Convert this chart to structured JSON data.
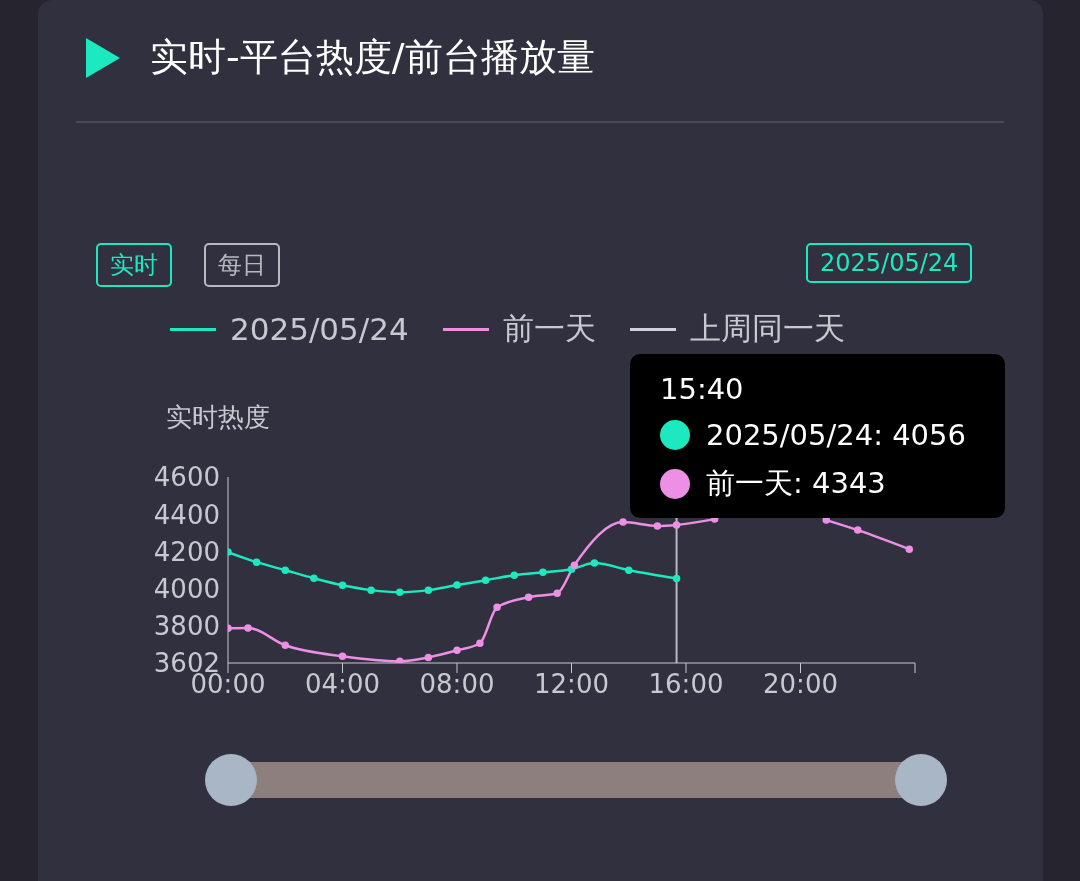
{
  "chart_data": {
    "type": "line",
    "title": "实时-平台热度/前台播放量",
    "ylabel": "实时热度",
    "legend": "top",
    "grid": false,
    "marker": "circle",
    "line_style": "solid",
    "xlim": [
      0,
      24
    ],
    "xticks": [
      {
        "value": 0,
        "label": "00:00"
      },
      {
        "value": 4,
        "label": "04:00"
      },
      {
        "value": 8,
        "label": "08:00"
      },
      {
        "value": 12,
        "label": "12:00"
      },
      {
        "value": 16,
        "label": "16:00"
      },
      {
        "value": 20,
        "label": "20:00"
      },
      {
        "value": 24,
        "label": null
      }
    ],
    "ylim": [
      3602,
      4600
    ],
    "yticks": [
      3602,
      3800,
      4000,
      4200,
      4400,
      4600
    ],
    "ref_lines": [
      {
        "axis": "x",
        "value": 15.67,
        "label": null,
        "color": "#b8b8c0"
      }
    ],
    "series": [
      {
        "name": "2025/05/24",
        "color": "#1de9c0",
        "x": [
          0,
          1,
          2,
          3,
          4,
          5,
          6,
          7,
          8,
          9,
          10,
          11,
          12,
          12.8,
          14,
          15.67
        ],
        "values": [
          4197,
          4143,
          4100,
          4057,
          4019,
          3993,
          3982,
          3993,
          4020,
          4046,
          4073,
          4089,
          4105,
          4138,
          4100,
          4056
        ]
      },
      {
        "name": "前一天",
        "color": "#ee8fe6",
        "x": [
          0,
          0.7,
          2,
          4,
          6,
          7,
          8,
          8.8,
          9.4,
          10.5,
          11.5,
          12.1,
          13.8,
          15,
          15.67,
          17,
          17.5,
          20.9,
          22,
          23.8
        ],
        "values": [
          3788,
          3790,
          3697,
          3638,
          3611,
          3632,
          3670,
          3708,
          3901,
          3955,
          3976,
          4127,
          4358,
          4337,
          4343,
          4374,
          null,
          4369,
          4315,
          4213
        ]
      },
      {
        "name": "上周同一天",
        "color": "#d0d0d8"
      }
    ],
    "annotations": [
      "实时",
      "每日",
      "2025/05/24",
      "15:40",
      "2025/05/24: 4056",
      "前一天: 4343"
    ]
  }
}
